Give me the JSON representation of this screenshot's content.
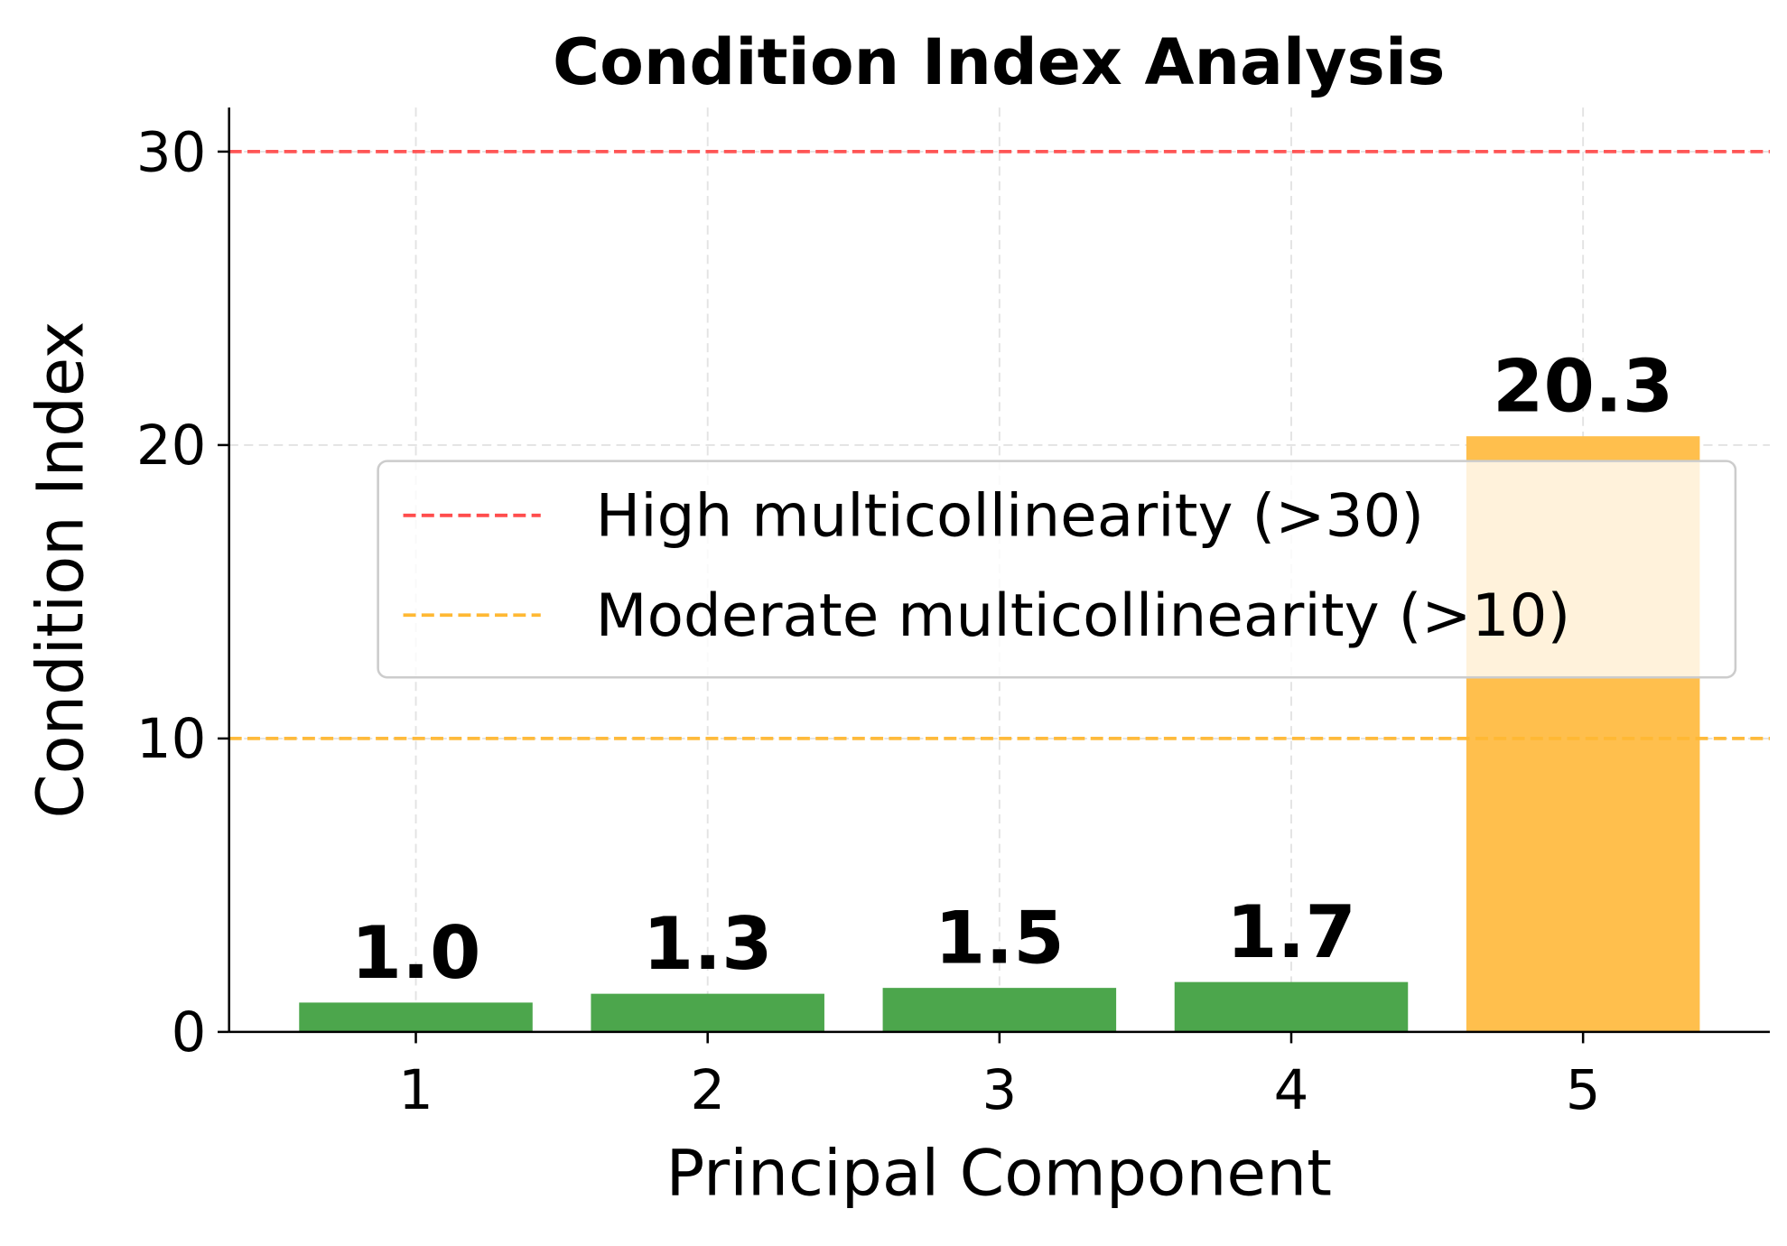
{
  "chart_data": {
    "type": "bar",
    "title": "Condition Index Analysis",
    "xlabel": "Principal Component",
    "ylabel": "Condition Index",
    "categories": [
      "1",
      "2",
      "3",
      "4",
      "5"
    ],
    "values": [
      1.0,
      1.3,
      1.5,
      1.7,
      20.3
    ],
    "value_labels": [
      "1.0",
      "1.3",
      "1.5",
      "1.7",
      "20.3"
    ],
    "bar_colors": [
      "#4ca64c",
      "#4ca64c",
      "#4ca64c",
      "#4ca64c",
      "#ffbf4d"
    ],
    "ylim": [
      0,
      31.5
    ],
    "xlim": [
      0.36,
      5.64
    ],
    "yticks": [
      0,
      10,
      20,
      30
    ],
    "grid": true,
    "reference_lines": [
      {
        "y": 30,
        "label": "High multicollinearity (>30)",
        "color": "#ff4d4d",
        "style": "dashed"
      },
      {
        "y": 10,
        "label": "Moderate multicollinearity (>10)",
        "color": "#ffb833",
        "style": "dashed"
      }
    ],
    "legend_placement": "center-right"
  }
}
